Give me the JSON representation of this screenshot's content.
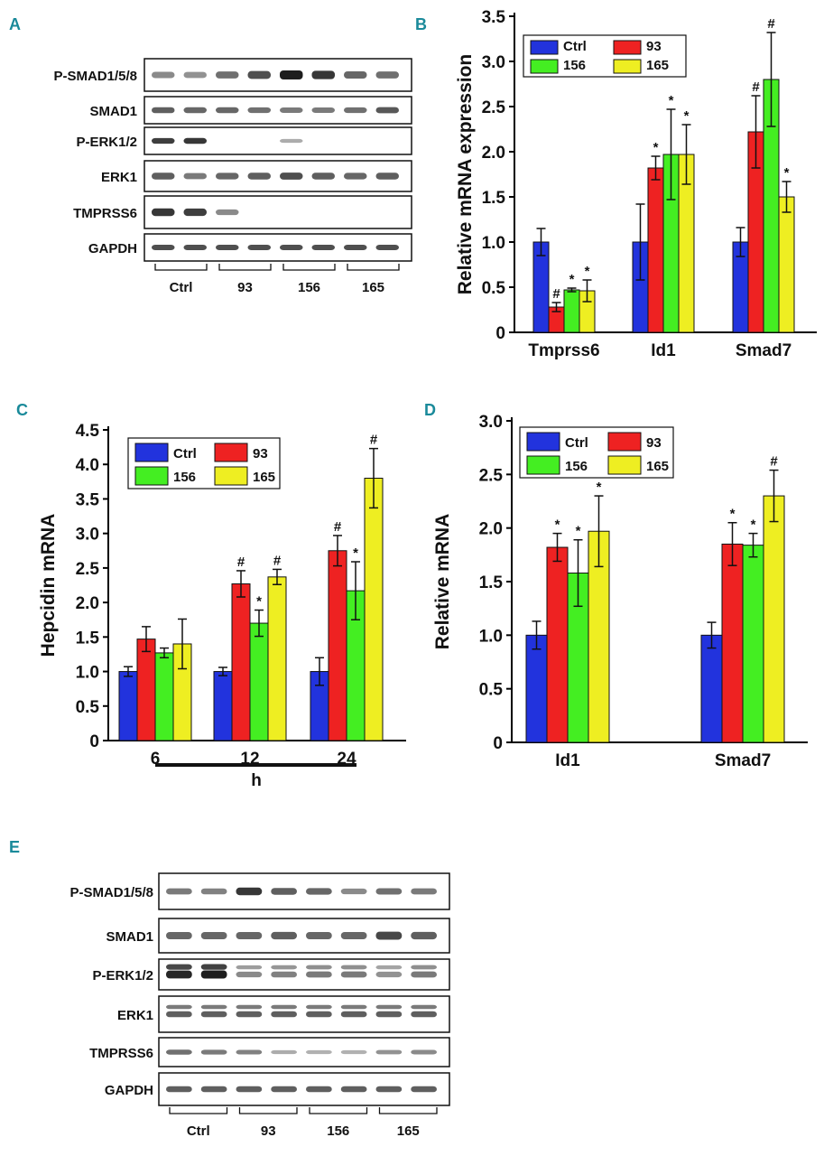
{
  "panels": {
    "A": "A",
    "B": "B",
    "C": "C",
    "D": "D",
    "E": "E"
  },
  "colors": {
    "ctrl": "#2233dd",
    "g93": "#ee2222",
    "g156": "#44ee22",
    "g165": "#eeee22"
  },
  "chart_data": [
    {
      "id": "B",
      "type": "bar",
      "categories": [
        "Tmprss6",
        "Id1",
        "Smad7"
      ],
      "ylabel": "Relative mRNA expression",
      "ylim": [
        0,
        3.5
      ],
      "yticks": [
        "0",
        "0.5",
        "1.0",
        "1.5",
        "2.0",
        "2.5",
        "3.0",
        "3.5"
      ],
      "legend": {
        "position": "top-left",
        "items": [
          "Ctrl",
          "93",
          "156",
          "165"
        ]
      },
      "series": [
        {
          "name": "Ctrl",
          "color": "#2233dd",
          "values": [
            1.0,
            1.0,
            1.0
          ],
          "errors": [
            0.15,
            0.42,
            0.16
          ]
        },
        {
          "name": "93",
          "color": "#ee2222",
          "values": [
            0.28,
            1.82,
            2.22
          ],
          "errors": [
            0.05,
            0.13,
            0.4
          ]
        },
        {
          "name": "156",
          "color": "#44ee22",
          "values": [
            0.47,
            1.97,
            2.8
          ],
          "errors": [
            0.02,
            0.5,
            0.52
          ]
        },
        {
          "name": "165",
          "color": "#eeee22",
          "values": [
            0.46,
            1.97,
            1.5
          ],
          "errors": [
            0.12,
            0.33,
            0.17
          ]
        }
      ],
      "annotations": [
        [
          "#",
          "*",
          "*"
        ],
        [
          "*",
          "*",
          "*"
        ],
        [
          "#",
          "#",
          "*"
        ]
      ]
    },
    {
      "id": "C",
      "type": "bar",
      "categories": [
        "6",
        "12",
        "24"
      ],
      "xlabel": "h",
      "ylabel": "Hepcidin mRNA",
      "ylim": [
        0,
        4.5
      ],
      "yticks": [
        "0",
        "0.5",
        "1.0",
        "1.5",
        "2.0",
        "2.5",
        "3.0",
        "3.5",
        "4.0",
        "4.5"
      ],
      "legend": {
        "position": "top-right",
        "items": [
          "Ctrl",
          "93",
          "156",
          "165"
        ]
      },
      "series": [
        {
          "name": "Ctrl",
          "color": "#2233dd",
          "values": [
            1.0,
            1.0,
            1.0
          ],
          "errors": [
            0.07,
            0.06,
            0.2
          ]
        },
        {
          "name": "93",
          "color": "#ee2222",
          "values": [
            1.47,
            2.27,
            2.75
          ],
          "errors": [
            0.18,
            0.19,
            0.22
          ]
        },
        {
          "name": "156",
          "color": "#44ee22",
          "values": [
            1.27,
            1.7,
            2.17
          ],
          "errors": [
            0.07,
            0.19,
            0.42
          ]
        },
        {
          "name": "165",
          "color": "#eeee22",
          "values": [
            1.4,
            2.37,
            3.8
          ],
          "errors": [
            0.36,
            0.11,
            0.43
          ]
        }
      ],
      "annotations": [
        [
          "",
          "",
          ""
        ],
        [
          "#",
          "*",
          "#"
        ],
        [
          "#",
          "*",
          "#"
        ]
      ]
    },
    {
      "id": "D",
      "type": "bar",
      "categories": [
        "Id1",
        "Smad7"
      ],
      "ylabel": "Relative mRNA",
      "ylim": [
        0,
        3.0
      ],
      "yticks": [
        "0",
        "0.5",
        "1.0",
        "1.5",
        "2.0",
        "2.5",
        "3.0"
      ],
      "legend": {
        "position": "top-left",
        "items": [
          "Ctrl",
          "93",
          "156",
          "165"
        ]
      },
      "series": [
        {
          "name": "Ctrl",
          "color": "#2233dd",
          "values": [
            1.0,
            1.0
          ],
          "errors": [
            0.13,
            0.12
          ]
        },
        {
          "name": "93",
          "color": "#ee2222",
          "values": [
            1.82,
            1.85
          ],
          "errors": [
            0.13,
            0.2
          ]
        },
        {
          "name": "156",
          "color": "#44ee22",
          "values": [
            1.58,
            1.84
          ],
          "errors": [
            0.31,
            0.11
          ]
        },
        {
          "name": "165",
          "color": "#eeee22",
          "values": [
            1.97,
            2.3
          ],
          "errors": [
            0.33,
            0.24
          ]
        }
      ],
      "annotations": [
        [
          "*",
          "*",
          "*"
        ],
        [
          "*",
          "*",
          "#"
        ]
      ]
    }
  ],
  "blot_A": {
    "rows": [
      "P-SMAD1/5/8",
      "SMAD1",
      "P-ERK1/2",
      "ERK1",
      "TMPRSS6",
      "GAPDH"
    ],
    "groups": [
      "Ctrl",
      "93",
      "156",
      "165"
    ]
  },
  "blot_E": {
    "rows": [
      "P-SMAD1/5/8",
      "SMAD1",
      "P-ERK1/2",
      "ERK1",
      "TMPRSS6",
      "GAPDH"
    ],
    "groups": [
      "Ctrl",
      "93",
      "156",
      "165"
    ]
  }
}
